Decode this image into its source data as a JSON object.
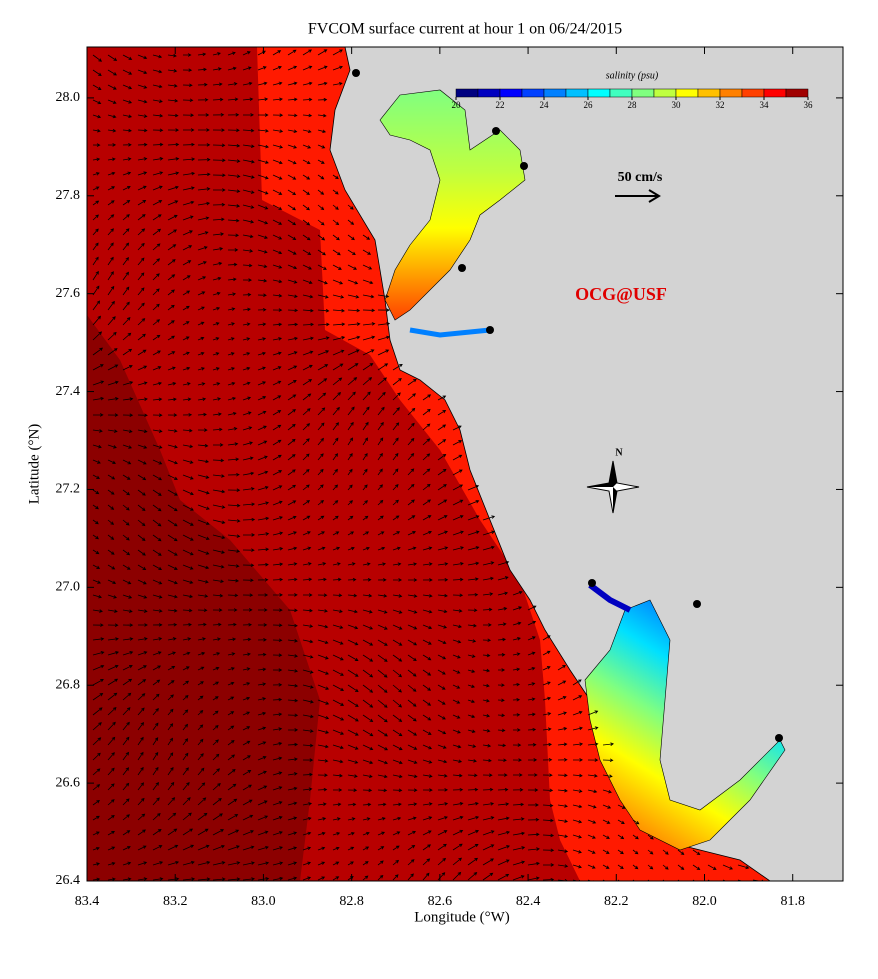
{
  "chart_data": {
    "type": "map",
    "title": "FVCOM surface current at hour 1 on 06/24/2015",
    "xlabel": "Longitude (°W)",
    "ylabel": "Latitude (°N)",
    "xlim": [
      83.4,
      81.686
    ],
    "ylim": [
      26.4,
      28.104
    ],
    "xticks": [
      83.4,
      83.2,
      {
        "value": 83,
        "label": "83.0"
      },
      82.8,
      82.6,
      82.4,
      82.2,
      {
        "value": 82,
        "label": "82.0"
      },
      81.8
    ],
    "yticks": [
      26.4,
      26.6,
      26.8,
      {
        "value": 27,
        "label": "27.0"
      },
      27.2,
      27.4,
      27.6,
      27.8,
      {
        "value": 28,
        "label": "28.0"
      }
    ],
    "colorbar": {
      "label": "salinity (psu)",
      "lim": [
        20,
        36
      ],
      "ticks": [
        20,
        22,
        24,
        26,
        28,
        30,
        32,
        34,
        36
      ],
      "colors": [
        "#000080",
        "#0000c0",
        "#0000ff",
        "#0040ff",
        "#0080ff",
        "#00c0ff",
        "#00ffff",
        "#40ffbf",
        "#80ff80",
        "#bfff40",
        "#ffff00",
        "#ffc000",
        "#ff8000",
        "#ff4000",
        "#ff0000",
        "#a00000"
      ]
    },
    "scale_label": "50 cm/s",
    "credit": "OCG@USF",
    "compass": "N"
  }
}
